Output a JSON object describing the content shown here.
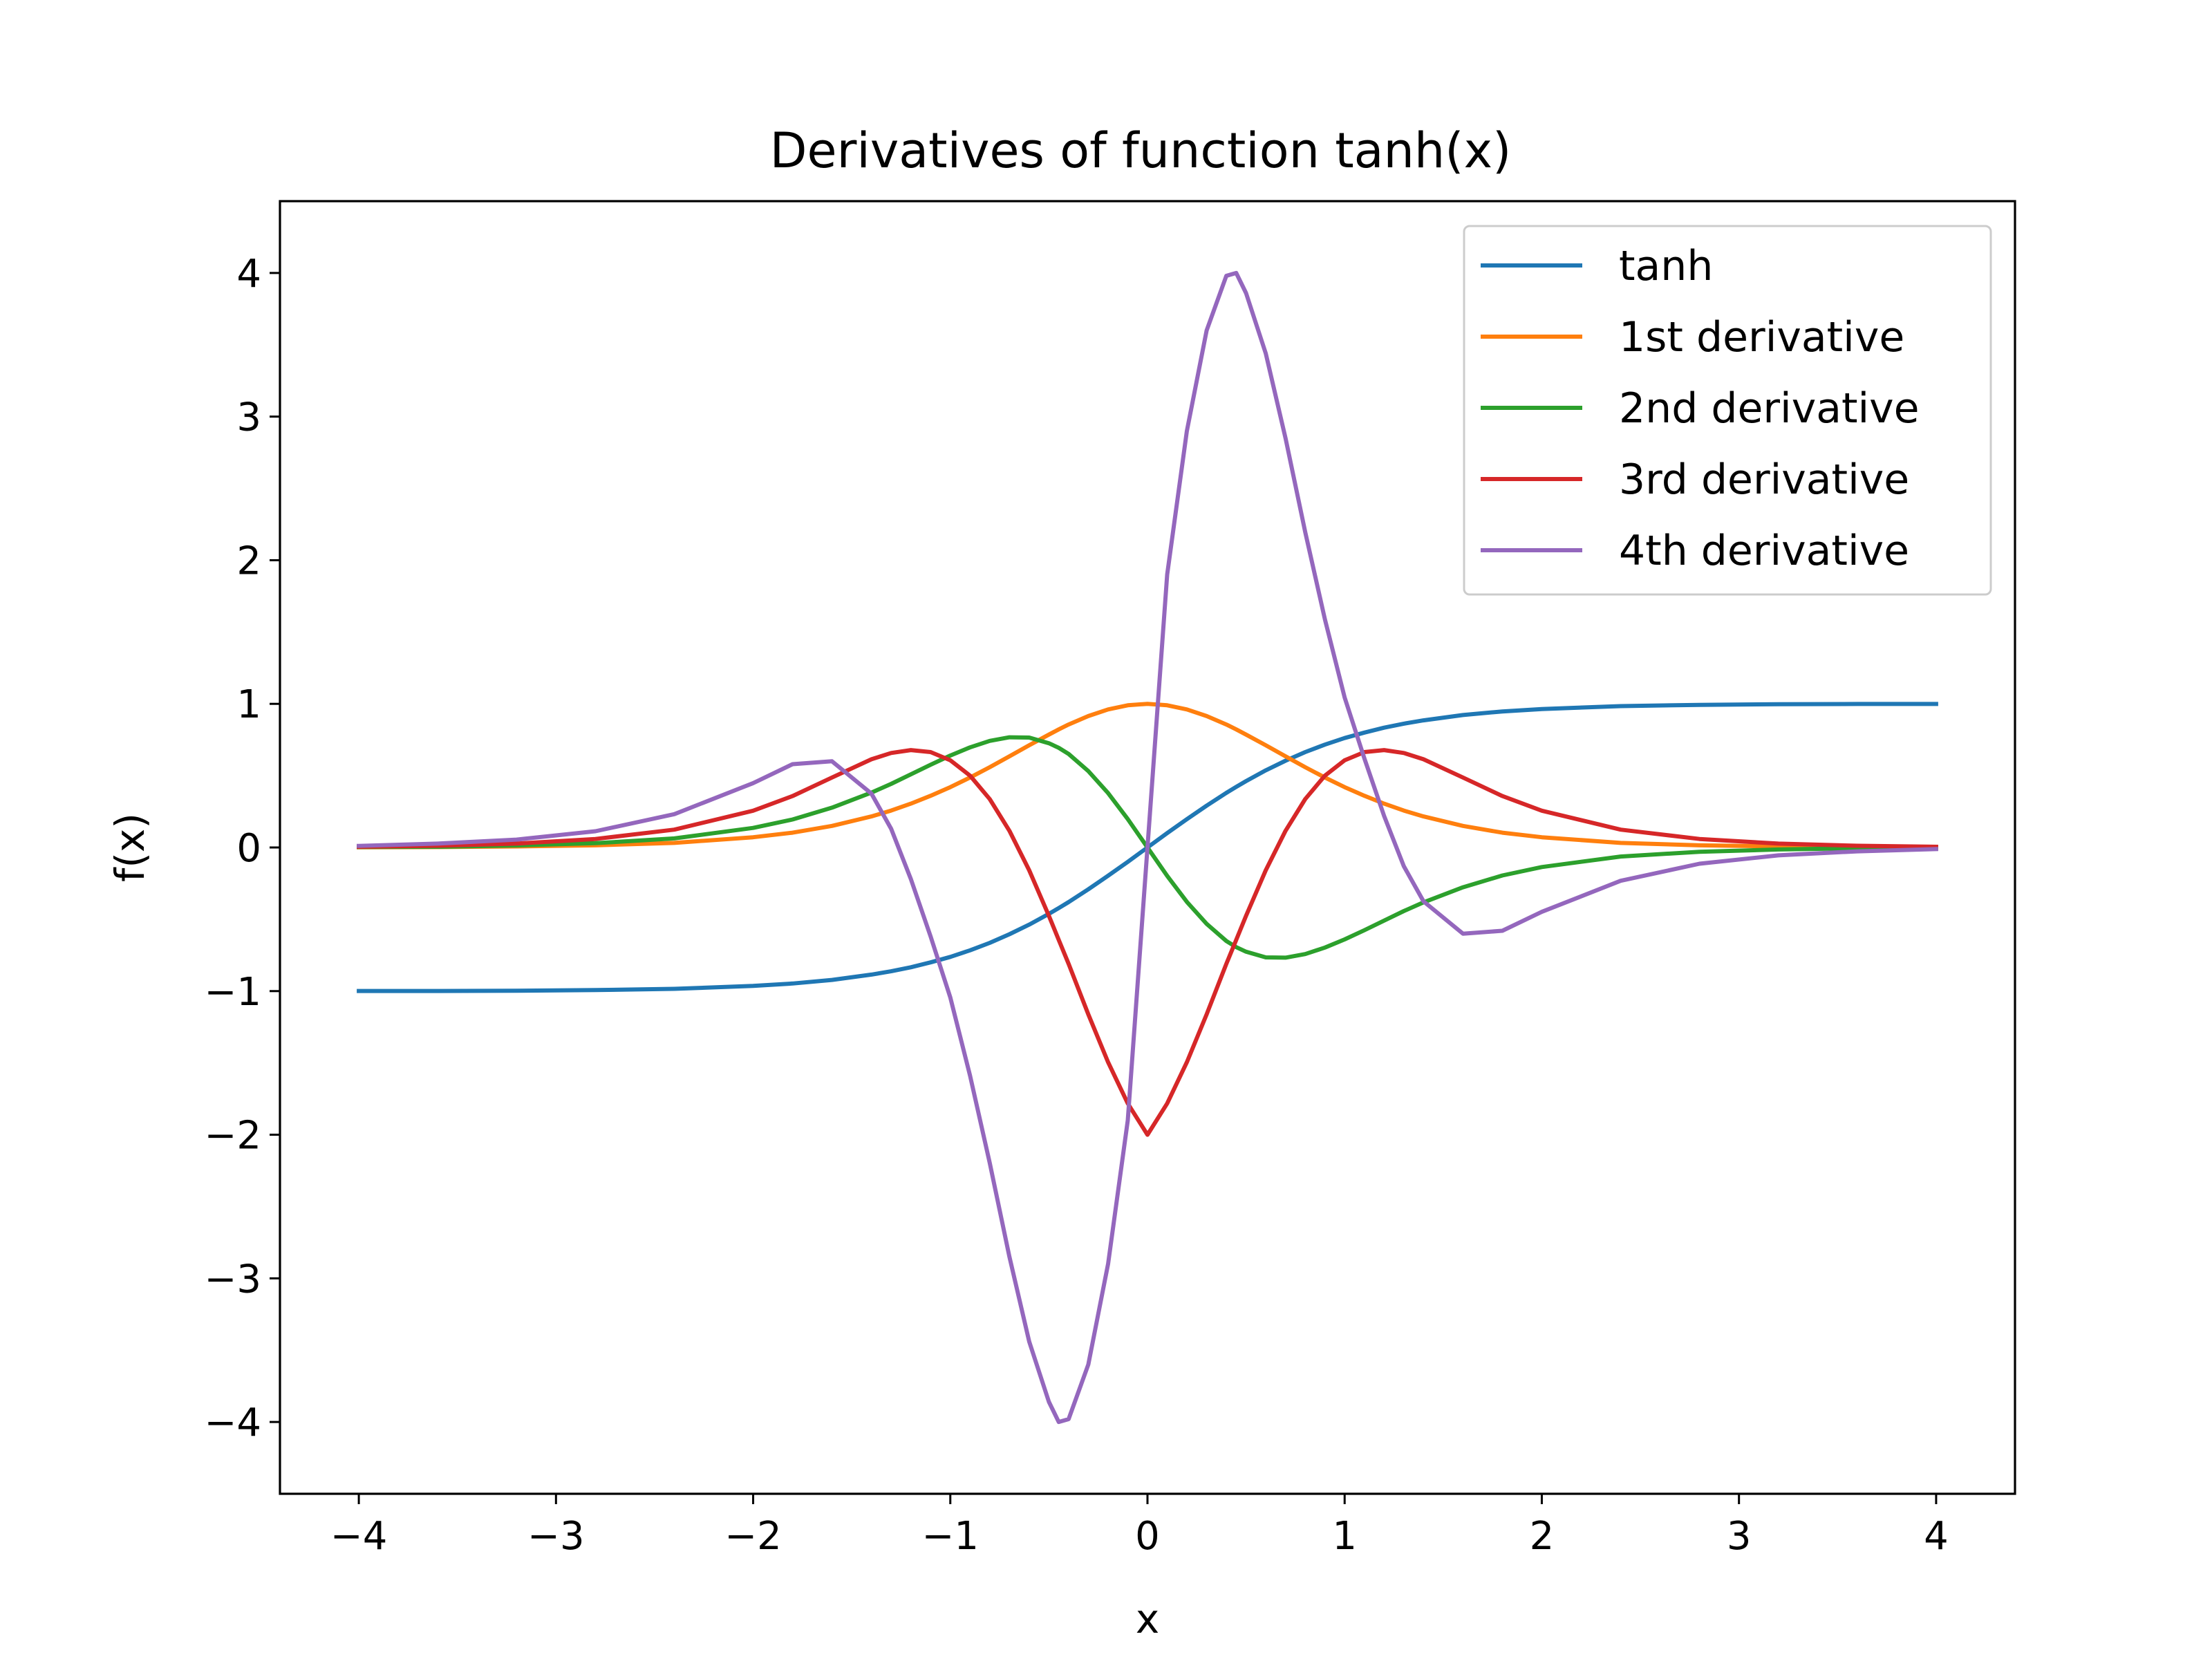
{
  "chart_data": {
    "type": "line",
    "title": "Derivatives of function tanh(x)",
    "xlabel": "x",
    "ylabel": "f(x)",
    "xlim": [
      -4.4,
      4.4
    ],
    "ylim": [
      -4.5,
      4.5
    ],
    "xticks": [
      -4,
      -3,
      -2,
      -1,
      0,
      1,
      2,
      3,
      4
    ],
    "xtick_labels": [
      "−4",
      "−3",
      "−2",
      "−1",
      "0",
      "1",
      "2",
      "3",
      "4"
    ],
    "yticks": [
      -4,
      -3,
      -2,
      -1,
      0,
      1,
      2,
      3,
      4
    ],
    "ytick_labels": [
      "−4",
      "−3",
      "−2",
      "−1",
      "0",
      "1",
      "2",
      "3",
      "4"
    ],
    "grid": false,
    "legend_position": "top-right",
    "x": [
      -4.0,
      -3.6,
      -3.2,
      -2.8,
      -2.4,
      -2.0,
      -1.8,
      -1.6,
      -1.4,
      -1.3,
      -1.2,
      -1.1,
      -1.0,
      -0.9,
      -0.8,
      -0.7,
      -0.6,
      -0.5,
      -0.45,
      -0.4,
      -0.3,
      -0.2,
      -0.1,
      0.0,
      0.1,
      0.2,
      0.3,
      0.4,
      0.45,
      0.5,
      0.6,
      0.7,
      0.8,
      0.9,
      1.0,
      1.1,
      1.2,
      1.3,
      1.4,
      1.6,
      1.8,
      2.0,
      2.4,
      2.8,
      3.2,
      3.6,
      4.0
    ],
    "series": [
      {
        "name": "tanh",
        "color": "#1f77b4",
        "values": [
          -0.999,
          -0.999,
          -0.997,
          -0.993,
          -0.984,
          -0.964,
          -0.947,
          -0.922,
          -0.885,
          -0.862,
          -0.834,
          -0.8,
          -0.762,
          -0.716,
          -0.664,
          -0.604,
          -0.537,
          -0.462,
          -0.422,
          -0.38,
          -0.291,
          -0.197,
          -0.1,
          0.0,
          0.1,
          0.197,
          0.291,
          0.38,
          0.422,
          0.462,
          0.537,
          0.604,
          0.664,
          0.716,
          0.762,
          0.8,
          0.834,
          0.862,
          0.885,
          0.922,
          0.947,
          0.964,
          0.984,
          0.993,
          0.997,
          0.999,
          0.999
        ]
      },
      {
        "name": "1st derivative",
        "color": "#ff7f0e",
        "values": [
          0.001,
          0.003,
          0.007,
          0.015,
          0.032,
          0.071,
          0.103,
          0.15,
          0.216,
          0.257,
          0.305,
          0.36,
          0.42,
          0.487,
          0.559,
          0.635,
          0.712,
          0.786,
          0.822,
          0.856,
          0.915,
          0.961,
          0.99,
          1.0,
          0.99,
          0.961,
          0.915,
          0.856,
          0.822,
          0.786,
          0.712,
          0.635,
          0.559,
          0.487,
          0.42,
          0.36,
          0.305,
          0.257,
          0.216,
          0.15,
          0.103,
          0.071,
          0.032,
          0.015,
          0.007,
          0.003,
          0.001
        ]
      },
      {
        "name": "2nd derivative",
        "color": "#2ca02c",
        "values": [
          0.003,
          0.005,
          0.014,
          0.03,
          0.063,
          0.136,
          0.195,
          0.277,
          0.382,
          0.443,
          0.509,
          0.576,
          0.64,
          0.697,
          0.742,
          0.767,
          0.765,
          0.726,
          0.694,
          0.651,
          0.532,
          0.379,
          0.198,
          0.0,
          -0.198,
          -0.379,
          -0.532,
          -0.651,
          -0.694,
          -0.726,
          -0.765,
          -0.767,
          -0.742,
          -0.697,
          -0.64,
          -0.576,
          -0.509,
          -0.443,
          -0.382,
          -0.277,
          -0.195,
          -0.136,
          -0.063,
          -0.03,
          -0.014,
          -0.005,
          -0.003
        ]
      },
      {
        "name": "3rd derivative",
        "color": "#d62728",
        "values": [
          0.005,
          0.012,
          0.027,
          0.059,
          0.124,
          0.256,
          0.358,
          0.487,
          0.614,
          0.658,
          0.678,
          0.664,
          0.607,
          0.5,
          0.337,
          0.116,
          -0.159,
          -0.476,
          -0.643,
          -0.81,
          -1.162,
          -1.495,
          -1.782,
          -2.0,
          -1.782,
          -1.495,
          -1.162,
          -0.81,
          -0.643,
          -0.476,
          -0.159,
          0.116,
          0.337,
          0.5,
          0.607,
          0.664,
          0.678,
          0.658,
          0.614,
          0.487,
          0.358,
          0.256,
          0.124,
          0.059,
          0.027,
          0.012,
          0.005
        ]
      },
      {
        "name": "4th derivative",
        "color": "#9467bd",
        "values": [
          0.011,
          0.027,
          0.055,
          0.113,
          0.232,
          0.448,
          0.58,
          0.6,
          0.375,
          0.13,
          -0.22,
          -0.62,
          -1.045,
          -1.588,
          -2.196,
          -2.85,
          -3.44,
          -3.86,
          -4.0,
          -3.98,
          -3.6,
          -2.9,
          -1.9,
          0.0,
          1.9,
          2.9,
          3.6,
          3.98,
          4.0,
          3.86,
          3.44,
          2.85,
          2.196,
          1.588,
          1.045,
          0.62,
          0.22,
          -0.13,
          -0.375,
          -0.6,
          -0.58,
          -0.448,
          -0.232,
          -0.113,
          -0.055,
          -0.027,
          -0.011
        ]
      }
    ]
  }
}
